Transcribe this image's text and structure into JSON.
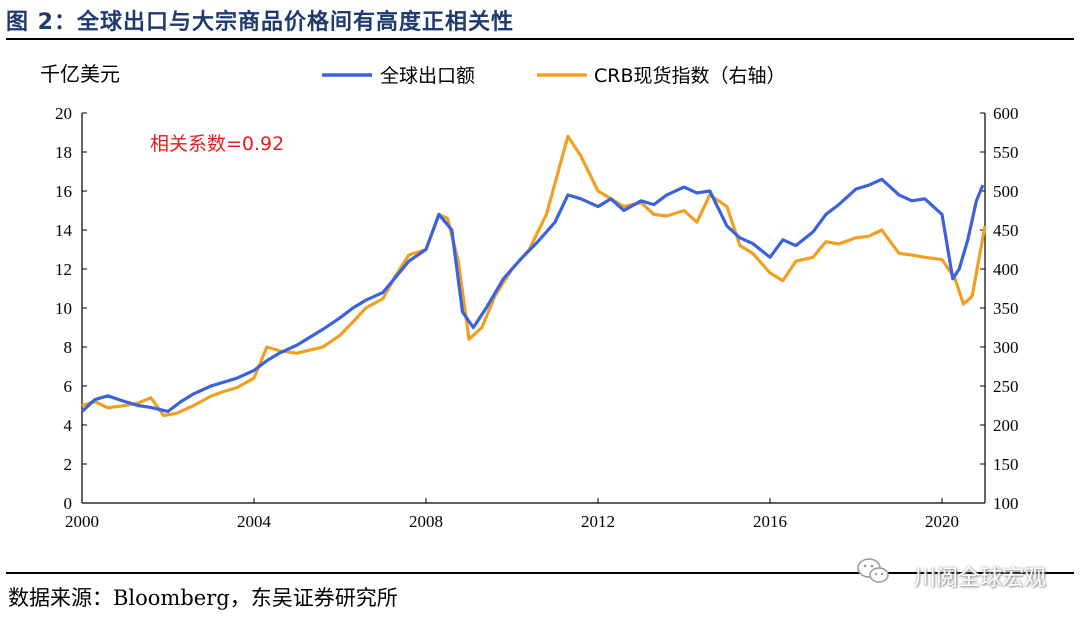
{
  "figure_title": "图 2：全球出口与大宗商品价格间有高度正相关性",
  "source_text": "数据来源：Bloomberg，东吴证券研究所",
  "watermark": "川阅全球宏观",
  "watermark_icon": "wechat-icon",
  "colors": {
    "title": "#1f3a6e",
    "export": "#3a62e0",
    "crb": "#f0a020",
    "annotation": "#e02020"
  },
  "chart_data": {
    "type": "line",
    "left_axis_unit": "千亿美元",
    "annotation": "相关系数=0.92",
    "x_ticks": [
      "2000",
      "2004",
      "2008",
      "2012",
      "2016",
      "2020"
    ],
    "xlim": [
      2000.0,
      2021.0
    ],
    "y_left_ticks": [
      "0",
      "2",
      "4",
      "6",
      "8",
      "10",
      "12",
      "14",
      "16",
      "18",
      "20"
    ],
    "ylim_left": [
      0,
      20
    ],
    "y_right_ticks": [
      "100",
      "150",
      "200",
      "250",
      "300",
      "350",
      "400",
      "450",
      "500",
      "550",
      "600"
    ],
    "ylim_right": [
      100,
      600
    ],
    "grid": false,
    "legend_position": "top",
    "series": [
      {
        "name": "全球出口额",
        "axis": "left",
        "x": [
          2000.0,
          2000.3,
          2000.6,
          2001.0,
          2001.3,
          2001.6,
          2002.0,
          2002.3,
          2002.6,
          2003.0,
          2003.3,
          2003.6,
          2004.0,
          2004.3,
          2004.6,
          2005.0,
          2005.3,
          2005.6,
          2006.0,
          2006.3,
          2006.6,
          2007.0,
          2007.3,
          2007.6,
          2008.0,
          2008.3,
          2008.6,
          2008.85,
          2009.1,
          2009.4,
          2009.8,
          2010.2,
          2010.6,
          2011.0,
          2011.3,
          2011.6,
          2012.0,
          2012.3,
          2012.6,
          2013.0,
          2013.3,
          2013.6,
          2014.0,
          2014.3,
          2014.6,
          2015.0,
          2015.3,
          2015.6,
          2016.0,
          2016.3,
          2016.6,
          2017.0,
          2017.3,
          2017.6,
          2018.0,
          2018.3,
          2018.6,
          2019.0,
          2019.3,
          2019.6,
          2020.0,
          2020.25,
          2020.4,
          2020.6,
          2020.8,
          2020.95
        ],
        "values": [
          4.7,
          5.3,
          5.5,
          5.2,
          5.0,
          4.9,
          4.7,
          5.2,
          5.6,
          6.0,
          6.2,
          6.4,
          6.8,
          7.3,
          7.7,
          8.1,
          8.5,
          8.9,
          9.5,
          10.0,
          10.4,
          10.8,
          11.6,
          12.4,
          13.0,
          14.8,
          14.0,
          9.8,
          9.0,
          10.0,
          11.5,
          12.5,
          13.4,
          14.4,
          15.8,
          15.6,
          15.2,
          15.6,
          15.0,
          15.5,
          15.3,
          15.8,
          16.2,
          15.9,
          16.0,
          14.2,
          13.6,
          13.3,
          12.6,
          13.5,
          13.2,
          13.9,
          14.8,
          15.3,
          16.1,
          16.3,
          16.6,
          15.8,
          15.5,
          15.6,
          14.8,
          11.5,
          12.0,
          13.5,
          15.5,
          16.3
        ]
      },
      {
        "name": "CRB现货指数（右轴）",
        "axis": "right",
        "x": [
          2000.0,
          2000.3,
          2000.6,
          2001.0,
          2001.3,
          2001.6,
          2001.9,
          2002.2,
          2002.6,
          2003.0,
          2003.3,
          2003.6,
          2004.0,
          2004.3,
          2004.6,
          2005.0,
          2005.3,
          2005.6,
          2006.0,
          2006.3,
          2006.6,
          2007.0,
          2007.3,
          2007.6,
          2008.0,
          2008.3,
          2008.5,
          2008.75,
          2009.0,
          2009.3,
          2009.6,
          2010.0,
          2010.4,
          2010.8,
          2011.1,
          2011.3,
          2011.6,
          2012.0,
          2012.3,
          2012.6,
          2013.0,
          2013.3,
          2013.6,
          2014.0,
          2014.3,
          2014.6,
          2015.0,
          2015.3,
          2015.6,
          2016.0,
          2016.3,
          2016.6,
          2017.0,
          2017.3,
          2017.6,
          2018.0,
          2018.3,
          2018.6,
          2019.0,
          2019.3,
          2019.6,
          2020.0,
          2020.3,
          2020.5,
          2020.7,
          2021.0
        ],
        "values": [
          225,
          230,
          222,
          225,
          228,
          235,
          212,
          215,
          225,
          237,
          243,
          248,
          260,
          300,
          295,
          292,
          296,
          300,
          315,
          332,
          350,
          362,
          392,
          418,
          425,
          470,
          465,
          410,
          310,
          325,
          365,
          400,
          425,
          470,
          530,
          570,
          545,
          500,
          490,
          480,
          485,
          470,
          468,
          475,
          460,
          495,
          480,
          430,
          420,
          395,
          385,
          410,
          415,
          435,
          432,
          440,
          442,
          450,
          420,
          418,
          415,
          412,
          388,
          355,
          365,
          455
        ]
      }
    ]
  }
}
